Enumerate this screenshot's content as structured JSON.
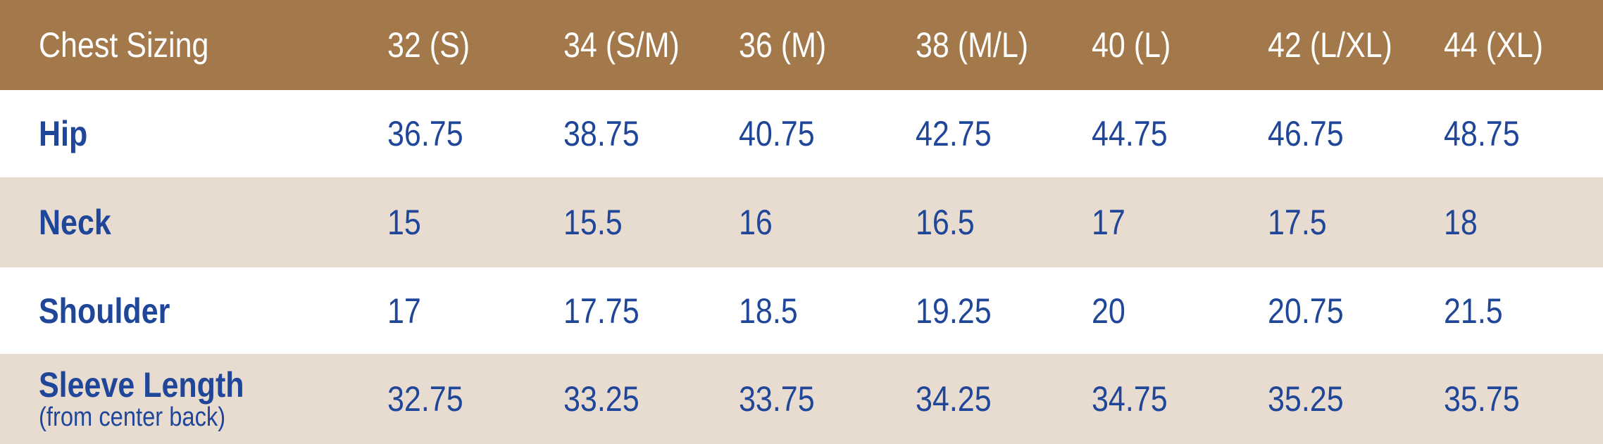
{
  "table": {
    "header": {
      "label": "Chest Sizing",
      "columns": [
        "32 (S)",
        "34 (S/M)",
        "36 (M)",
        "38 (M/L)",
        "40 (L)",
        "42 (L/XL)",
        "44 (XL)"
      ]
    },
    "rows": [
      {
        "label": "Hip",
        "values": [
          36.75,
          38.75,
          40.75,
          42.75,
          44.75,
          46.75,
          48.75
        ]
      },
      {
        "label": "Neck",
        "values": [
          15,
          15.5,
          16,
          16.5,
          17,
          17.5,
          18
        ]
      },
      {
        "label": "Shoulder",
        "values": [
          17,
          17.75,
          18.5,
          19.25,
          20,
          20.75,
          21.5
        ]
      },
      {
        "label": "Sleeve Length",
        "note": "(from center back)",
        "values": [
          32.75,
          33.25,
          33.75,
          34.25,
          34.75,
          35.25,
          35.75
        ]
      }
    ]
  }
}
